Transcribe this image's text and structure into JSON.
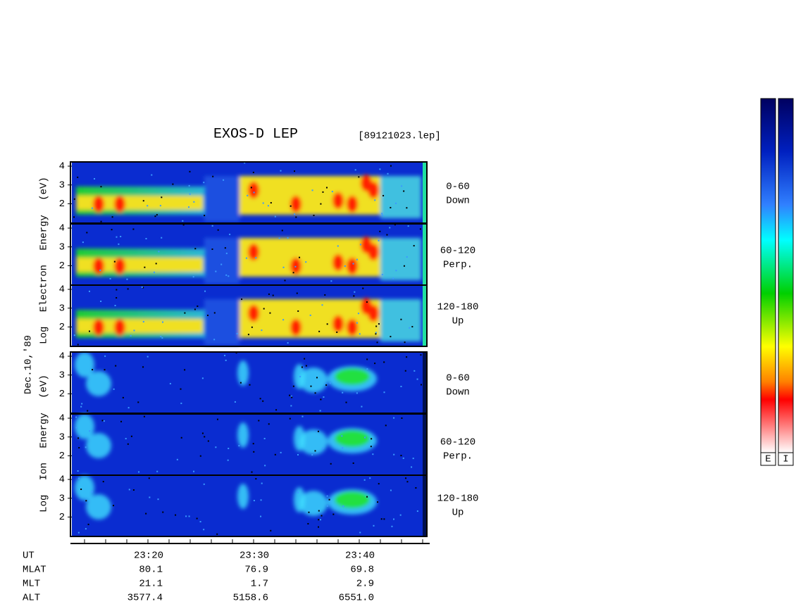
{
  "header": {
    "title": "EXOS-D LEP",
    "file": "[89121023.lep]"
  },
  "date": "Dec.10,'89",
  "electron_axis_label": "Log Electron Energy (eV)",
  "ion_axis_label": "Log Ion Energy (eV)",
  "yticks": [
    2,
    3,
    4
  ],
  "panels": [
    {
      "species": "electron",
      "angle": "0-60",
      "direction": "Down"
    },
    {
      "species": "electron",
      "angle": "60-120",
      "direction": "Perp."
    },
    {
      "species": "electron",
      "angle": "120-180",
      "direction": "Up"
    },
    {
      "species": "ion",
      "angle": "0-60",
      "direction": "Down"
    },
    {
      "species": "ion",
      "angle": "60-120",
      "direction": "Perp."
    },
    {
      "species": "ion",
      "angle": "120-180",
      "direction": "Up"
    }
  ],
  "time_labels": [
    "23:20",
    "23:30",
    "23:40"
  ],
  "orbit_table": [
    {
      "name": "UT",
      "values": []
    },
    {
      "name": "MLAT",
      "values": [
        "80.1",
        "76.9",
        "69.8"
      ]
    },
    {
      "name": "MLT",
      "values": [
        "21.1",
        "1.7",
        "2.9"
      ]
    },
    {
      "name": "ALT",
      "values": [
        "3577.4",
        "5158.6",
        "6551.0"
      ]
    }
  ],
  "colorbars": [
    "E",
    "I"
  ]
}
